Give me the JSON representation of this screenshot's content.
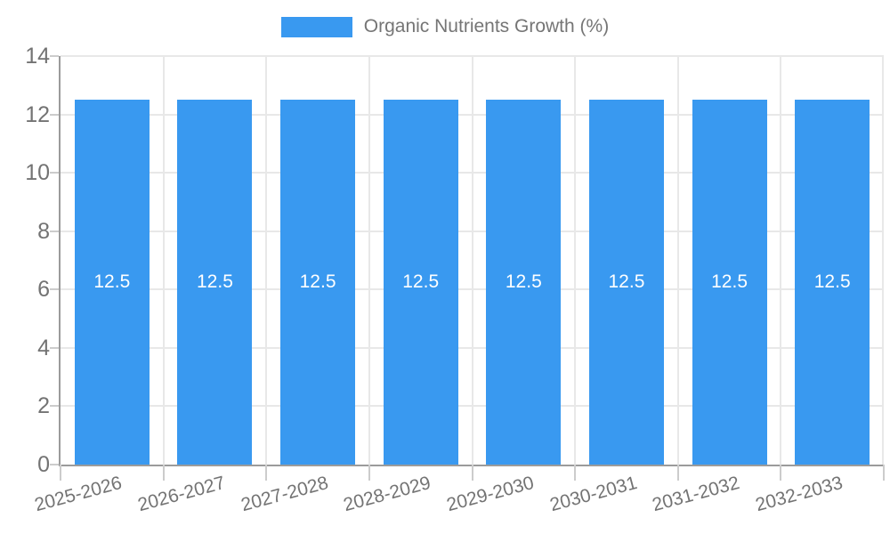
{
  "chart_data": {
    "type": "bar",
    "title": "Organic Nutrients Growth (%)",
    "categories": [
      "2025-2026",
      "2026-2027",
      "2027-2028",
      "2028-2029",
      "2029-2030",
      "2030-2031",
      "2031-2032",
      "2032-2033"
    ],
    "series": [
      {
        "name": "Organic Nutrients Growth (%)",
        "values": [
          12.5,
          12.5,
          12.5,
          12.5,
          12.5,
          12.5,
          12.5,
          12.5
        ],
        "value_labels": [
          "12.5",
          "12.5",
          "12.5",
          "12.5",
          "12.5",
          "12.5",
          "12.5",
          "12.5"
        ]
      }
    ],
    "xlabel": "",
    "ylabel": "",
    "ylim": [
      0,
      14
    ],
    "yticks": [
      0,
      2,
      4,
      6,
      8,
      10,
      12,
      14
    ],
    "ytick_labels": [
      "0",
      "2",
      "4",
      "6",
      "8",
      "10",
      "12",
      "14"
    ],
    "grid": true,
    "legend_position": "top-center",
    "x_label_rotation_deg": -15,
    "colors": {
      "bar": "#3999f0",
      "bar_value_text": "#ffffff",
      "axis_text": "#737373",
      "legend_text": "#757575",
      "gridline": "#e8e8e8",
      "axis_line": "#9b9b9b",
      "tick": "#cccccc",
      "background": "#ffffff"
    }
  }
}
